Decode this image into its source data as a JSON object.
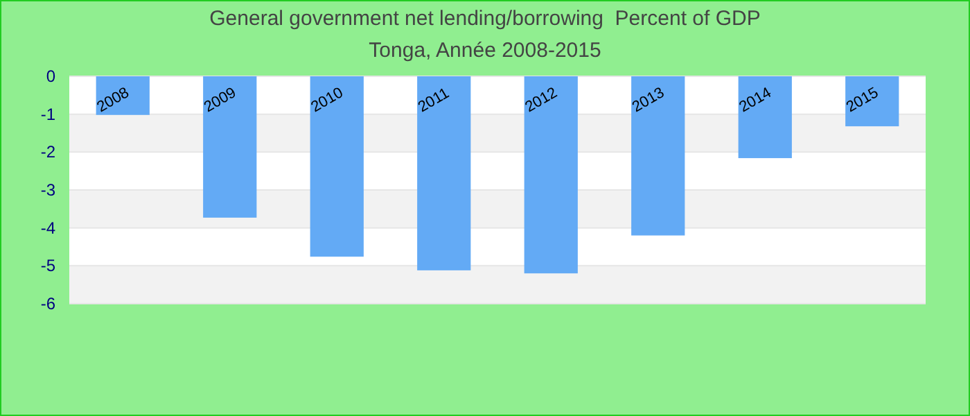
{
  "chart_data": {
    "type": "bar",
    "title": "General government net lending/borrowing  Percent of GDP",
    "subtitle": "Tonga, Année 2008-2015",
    "categories": [
      "2008",
      "2009",
      "2010",
      "2011",
      "2012",
      "2013",
      "2014",
      "2015"
    ],
    "values": [
      -1.02,
      -3.73,
      -4.76,
      -5.12,
      -5.2,
      -4.2,
      -2.16,
      -1.32
    ],
    "color": "#63aaf5",
    "ylim": [
      -6,
      0
    ],
    "yticks": [
      0,
      -1,
      -2,
      -3,
      -4,
      -5,
      -6
    ],
    "grid": true
  }
}
